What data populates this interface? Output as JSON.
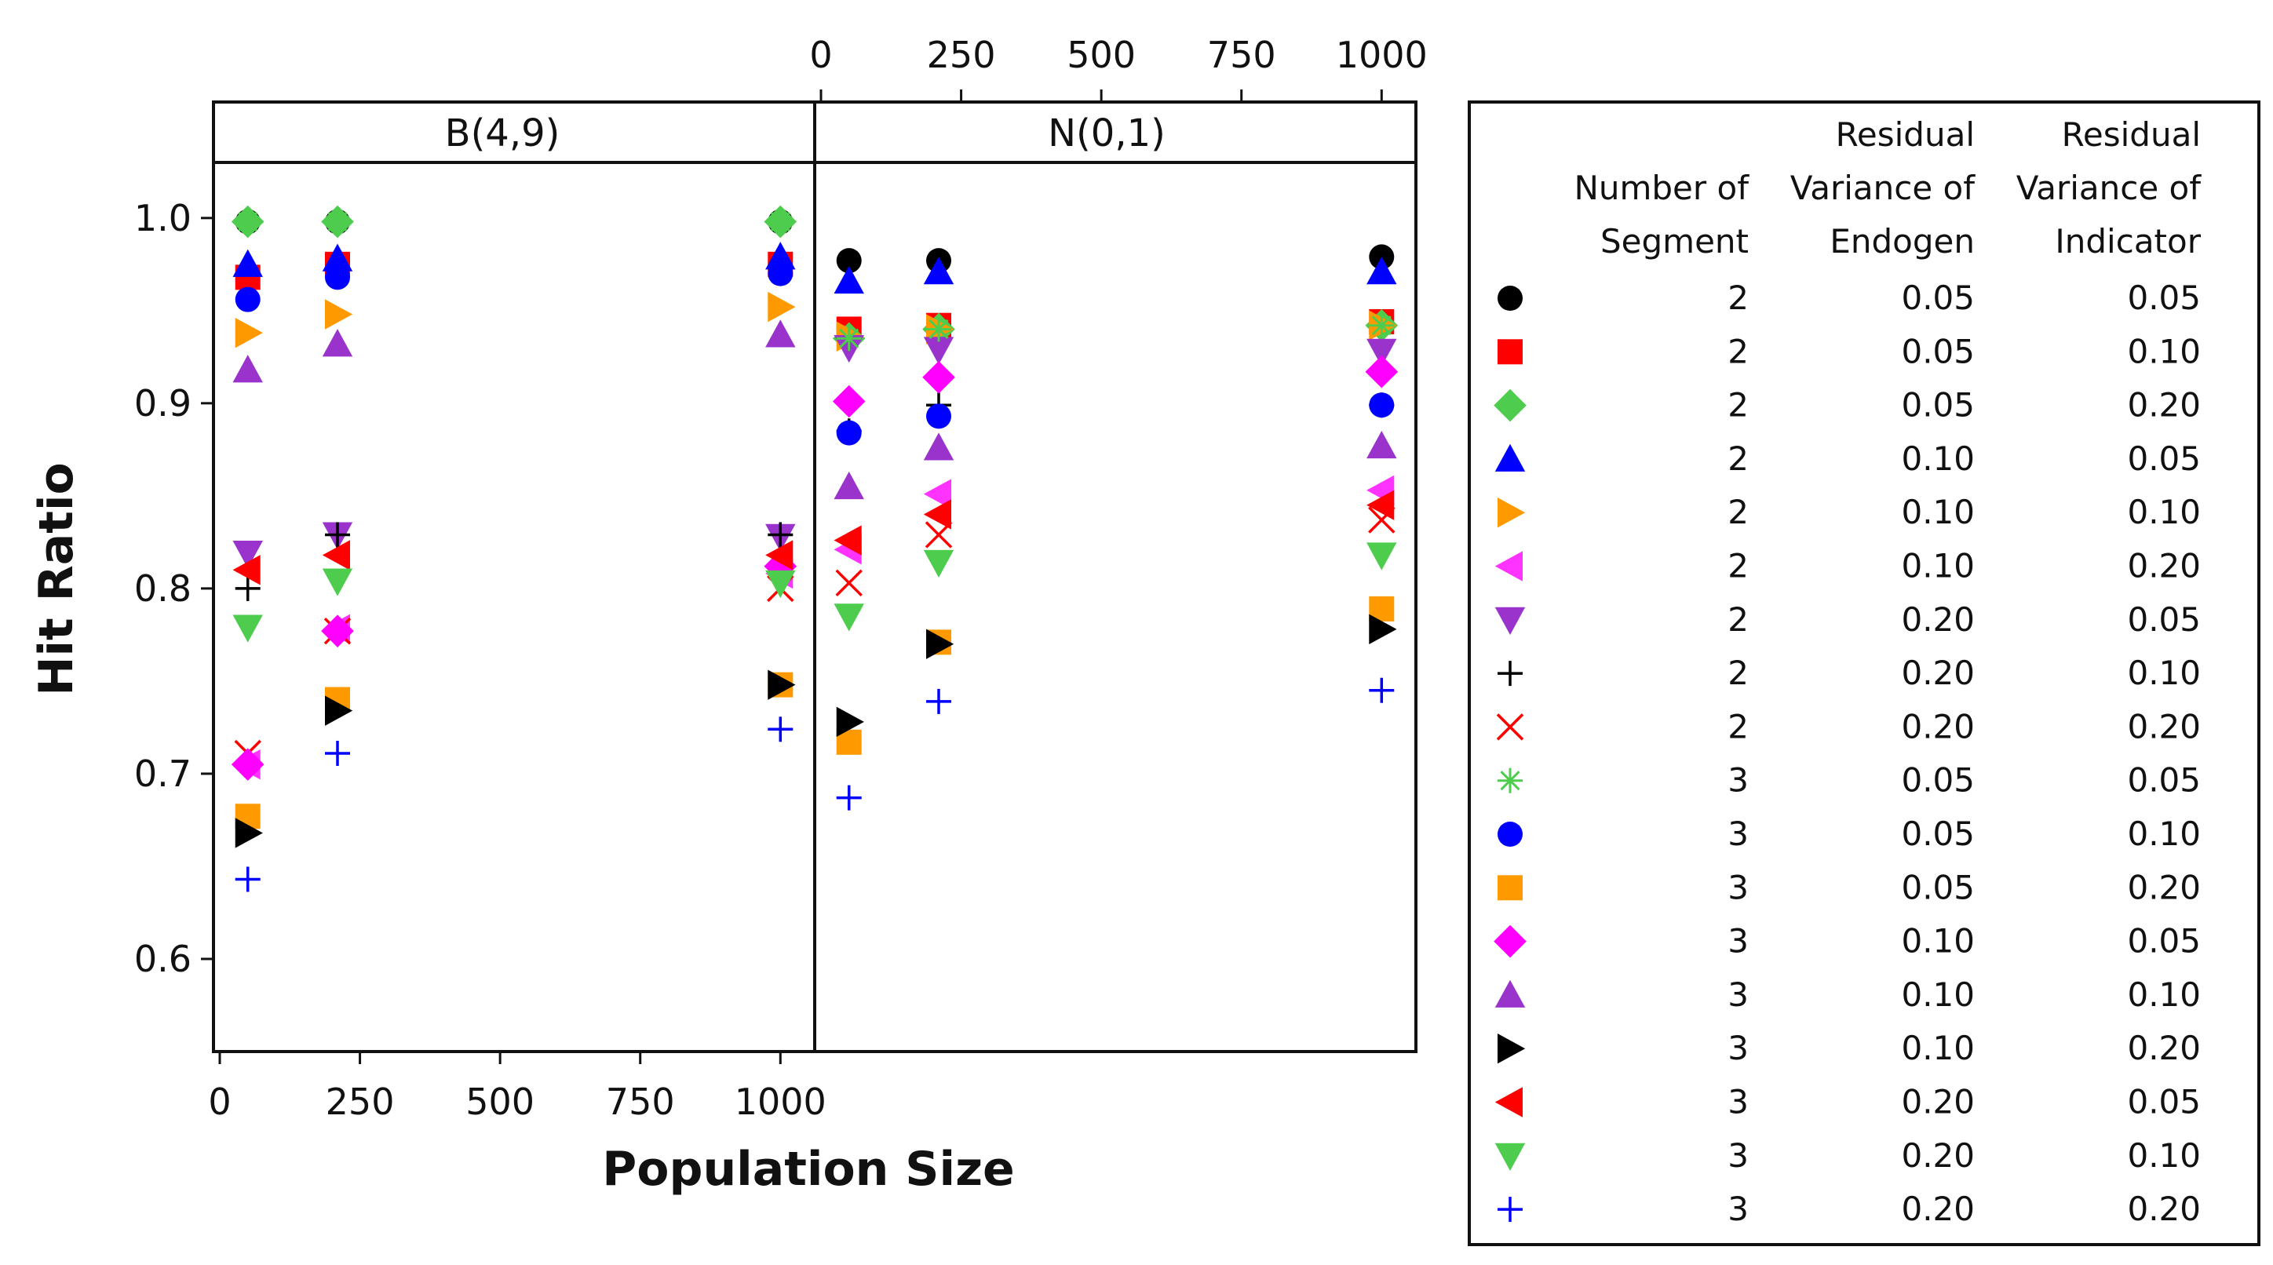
{
  "chart_data": {
    "type": "scatter",
    "ylabel": "Hit Ratio",
    "xlabel": "Population Size",
    "xlim": [
      0,
      1050
    ],
    "ylim": [
      0.55,
      1.03
    ],
    "x_ticks": [
      "0",
      "250",
      "500",
      "750",
      "1000"
    ],
    "y_ticks": [
      "0.6",
      "0.7",
      "0.8",
      "0.9",
      "1.0"
    ],
    "panels": [
      {
        "label": "B(4,9)",
        "x": [
          50,
          210,
          1000
        ],
        "series": [
          {
            "name": "2 / 0.05 / 0.05",
            "values": [
              0.998,
              0.998,
              0.998
            ]
          },
          {
            "name": "2 / 0.05 / 0.10",
            "values": [
              0.968,
              0.975,
              0.975
            ]
          },
          {
            "name": "2 / 0.05 / 0.20",
            "values": [
              0.998,
              0.998,
              0.998
            ]
          },
          {
            "name": "2 / 0.10 / 0.05",
            "values": [
              0.975,
              0.978,
              0.979
            ]
          },
          {
            "name": "2 / 0.10 / 0.10",
            "values": [
              0.938,
              0.948,
              0.952
            ]
          },
          {
            "name": "2 / 0.10 / 0.20",
            "values": [
              0.705,
              0.778,
              0.808
            ]
          },
          {
            "name": "2 / 0.20 / 0.05",
            "values": [
              0.819,
              0.829,
              0.828
            ]
          },
          {
            "name": "2 / 0.20 / 0.10",
            "values": [
              0.8,
              0.829,
              0.829
            ]
          },
          {
            "name": "2 / 0.20 / 0.20",
            "values": [
              0.711,
              0.777,
              0.8
            ]
          },
          {
            "name": "3 / 0.05 / 0.05",
            "values": [
              0.998,
              0.998,
              0.998
            ]
          },
          {
            "name": "3 / 0.05 / 0.10",
            "values": [
              0.956,
              0.968,
              0.97
            ]
          },
          {
            "name": "3 / 0.05 / 0.20",
            "values": [
              0.677,
              0.74,
              0.748
            ]
          },
          {
            "name": "3 / 0.10 / 0.05",
            "values": [
              0.705,
              0.777,
              0.812
            ]
          },
          {
            "name": "3 / 0.10 / 0.10",
            "values": [
              0.918,
              0.932,
              0.937
            ]
          },
          {
            "name": "3 / 0.10 / 0.20",
            "values": [
              0.668,
              0.734,
              0.748
            ]
          },
          {
            "name": "3 / 0.20 / 0.05",
            "values": [
              0.81,
              0.818,
              0.818
            ]
          },
          {
            "name": "3 / 0.20 / 0.10",
            "values": [
              0.779,
              0.804,
              0.803
            ]
          },
          {
            "name": "3 / 0.20 / 0.20",
            "values": [
              0.643,
              0.711,
              0.724
            ]
          }
        ]
      },
      {
        "label": "N(0,1)",
        "x": [
          50,
          210,
          1000
        ],
        "series": [
          {
            "name": "2 / 0.05 / 0.05",
            "values": [
              0.977,
              0.977,
              0.979
            ]
          },
          {
            "name": "2 / 0.05 / 0.10",
            "values": [
              0.94,
              0.942,
              0.944
            ]
          },
          {
            "name": "2 / 0.05 / 0.20",
            "values": [
              0.935,
              0.94,
              0.942
            ]
          },
          {
            "name": "2 / 0.10 / 0.05",
            "values": [
              0.966,
              0.971,
              0.971
            ]
          },
          {
            "name": "2 / 0.10 / 0.10",
            "values": [
              0.936,
              0.94,
              0.942
            ]
          },
          {
            "name": "2 / 0.10 / 0.20",
            "values": [
              0.821,
              0.851,
              0.853
            ]
          },
          {
            "name": "2 / 0.20 / 0.05",
            "values": [
              0.93,
              0.929,
              0.928
            ]
          },
          {
            "name": "2 / 0.20 / 0.10",
            "values": [
              0.885,
              0.899,
              0.899
            ]
          },
          {
            "name": "2 / 0.20 / 0.20",
            "values": [
              0.803,
              0.829,
              0.837
            ]
          },
          {
            "name": "3 / 0.05 / 0.05",
            "values": [
              0.935,
              0.94,
              0.942
            ]
          },
          {
            "name": "3 / 0.05 / 0.10",
            "values": [
              0.884,
              0.893,
              0.899
            ]
          },
          {
            "name": "3 / 0.05 / 0.20",
            "values": [
              0.717,
              0.771,
              0.789
            ]
          },
          {
            "name": "3 / 0.10 / 0.05",
            "values": [
              0.901,
              0.914,
              0.917
            ]
          },
          {
            "name": "3 / 0.10 / 0.10",
            "values": [
              0.855,
              0.876,
              0.877
            ]
          },
          {
            "name": "3 / 0.10 / 0.20",
            "values": [
              0.728,
              0.77,
              0.778
            ]
          },
          {
            "name": "3 / 0.20 / 0.05",
            "values": [
              0.826,
              0.84,
              0.845
            ]
          },
          {
            "name": "3 / 0.20 / 0.10",
            "values": [
              0.785,
              0.814,
              0.818
            ]
          },
          {
            "name": "3 / 0.20 / 0.20",
            "values": [
              0.687,
              0.739,
              0.745
            ]
          }
        ]
      }
    ],
    "legend": {
      "headers": {
        "segment": [
          "Number of",
          "Segment"
        ],
        "endogen": [
          "Residual",
          "Variance of",
          "Endogen"
        ],
        "indicator": [
          "Residual",
          "Variance of",
          "Indicator"
        ]
      },
      "rows": [
        {
          "marker": "circle",
          "color": "#000000",
          "segment": "2",
          "endogen": "0.05",
          "indicator": "0.05"
        },
        {
          "marker": "square",
          "color": "#ff0000",
          "segment": "2",
          "endogen": "0.05",
          "indicator": "0.10"
        },
        {
          "marker": "diamond",
          "color": "#4dcc4d",
          "segment": "2",
          "endogen": "0.05",
          "indicator": "0.20"
        },
        {
          "marker": "triangle-up",
          "color": "#0000ff",
          "segment": "2",
          "endogen": "0.10",
          "indicator": "0.05"
        },
        {
          "marker": "triangle-right",
          "color": "#ff9900",
          "segment": "2",
          "endogen": "0.10",
          "indicator": "0.10"
        },
        {
          "marker": "triangle-left",
          "color": "#ff33ff",
          "segment": "2",
          "endogen": "0.10",
          "indicator": "0.20"
        },
        {
          "marker": "triangle-down",
          "color": "#9933cc",
          "segment": "2",
          "endogen": "0.20",
          "indicator": "0.05"
        },
        {
          "marker": "plus",
          "color": "#000000",
          "segment": "2",
          "endogen": "0.20",
          "indicator": "0.10"
        },
        {
          "marker": "x",
          "color": "#ff0000",
          "segment": "2",
          "endogen": "0.20",
          "indicator": "0.20"
        },
        {
          "marker": "asterisk",
          "color": "#4dcc4d",
          "segment": "3",
          "endogen": "0.05",
          "indicator": "0.05"
        },
        {
          "marker": "circle",
          "color": "#0000ff",
          "segment": "3",
          "endogen": "0.05",
          "indicator": "0.10"
        },
        {
          "marker": "square",
          "color": "#ff9900",
          "segment": "3",
          "endogen": "0.05",
          "indicator": "0.20"
        },
        {
          "marker": "diamond",
          "color": "#ff00ff",
          "segment": "3",
          "endogen": "0.10",
          "indicator": "0.05"
        },
        {
          "marker": "triangle-up",
          "color": "#9933cc",
          "segment": "3",
          "endogen": "0.10",
          "indicator": "0.10"
        },
        {
          "marker": "triangle-right",
          "color": "#000000",
          "segment": "3",
          "endogen": "0.10",
          "indicator": "0.20"
        },
        {
          "marker": "triangle-left",
          "color": "#ff0000",
          "segment": "3",
          "endogen": "0.20",
          "indicator": "0.05"
        },
        {
          "marker": "triangle-down",
          "color": "#4dcc4d",
          "segment": "3",
          "endogen": "0.20",
          "indicator": "0.10"
        },
        {
          "marker": "plus",
          "color": "#0000ff",
          "segment": "3",
          "endogen": "0.20",
          "indicator": "0.20"
        }
      ]
    }
  }
}
